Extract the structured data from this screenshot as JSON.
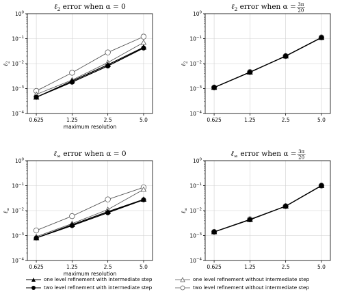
{
  "chart_data": [
    {
      "type": "line",
      "title": "ℓ₂ error when α = 0",
      "title_parts": {
        "main": "ℓ",
        "sub": "2",
        "rest": " error when α = 0"
      },
      "xlabel": "maximum resolution",
      "ylabel": "ℓ₂",
      "ylabel_parts": {
        "main": "ℓ",
        "sub": "2"
      },
      "x": [
        0.625,
        1.25,
        2.5,
        5.0
      ],
      "x_tick_labels": [
        "0.625",
        "1.25",
        "2.5",
        "5.0"
      ],
      "y_scale": "log",
      "ylim": [
        0.0001,
        1
      ],
      "y_tick_labels": [
        {
          "b": "10",
          "e": "−4"
        },
        {
          "b": "10",
          "e": "−3"
        },
        {
          "b": "10",
          "e": "−2"
        },
        {
          "b": "10",
          "e": "−1"
        },
        {
          "b": "10",
          "e": "0"
        }
      ],
      "series": [
        {
          "name": "one level refinement with intermediate step",
          "marker": "triangle-filled",
          "values": [
            0.00045,
            0.002,
            0.009,
            0.045
          ]
        },
        {
          "name": "two level refinement with intermediate step",
          "marker": "circle-filled",
          "values": [
            0.00045,
            0.0018,
            0.008,
            0.042
          ]
        },
        {
          "name": "one level refinement without intermediate step",
          "marker": "triangle-open",
          "values": [
            0.00058,
            0.0022,
            0.011,
            0.07
          ]
        },
        {
          "name": "two level refinement without intermediate step",
          "marker": "circle-open",
          "values": [
            0.0008,
            0.0043,
            0.028,
            0.12
          ]
        }
      ]
    },
    {
      "type": "line",
      "title": "ℓ₂ error when α = 3π/20",
      "title_parts": {
        "main": "ℓ",
        "sub": "2",
        "rest": " error when α = ",
        "frac_num": "3π",
        "frac_den": "20"
      },
      "xlabel": "",
      "ylabel": "ℓ₂",
      "ylabel_parts": {
        "main": "ℓ",
        "sub": "2"
      },
      "x": [
        0.625,
        1.25,
        2.5,
        5.0
      ],
      "x_tick_labels": [
        "0.625",
        "1.25",
        "2.5",
        "5.0"
      ],
      "y_scale": "log",
      "ylim": [
        0.0001,
        1
      ],
      "y_tick_labels": [
        {
          "b": "10",
          "e": "−4"
        },
        {
          "b": "10",
          "e": "−3"
        },
        {
          "b": "10",
          "e": "−2"
        },
        {
          "b": "10",
          "e": "−1"
        },
        {
          "b": "10",
          "e": "0"
        }
      ],
      "series": [
        {
          "name": "one level refinement with intermediate step",
          "marker": "triangle-filled",
          "values": [
            0.0011,
            0.0045,
            0.02,
            0.11
          ]
        },
        {
          "name": "two level refinement with intermediate step",
          "marker": "circle-filled",
          "values": [
            0.0011,
            0.0045,
            0.02,
            0.11
          ]
        },
        {
          "name": "one level refinement without intermediate step",
          "marker": "triangle-open",
          "values": [
            0.0011,
            0.0046,
            0.02,
            0.112
          ]
        },
        {
          "name": "two level refinement without intermediate step",
          "marker": "circle-open",
          "values": [
            0.0011,
            0.0046,
            0.02,
            0.112
          ]
        }
      ]
    },
    {
      "type": "line",
      "title": "ℓ∞ error when α = 0",
      "title_parts": {
        "main": "ℓ",
        "sub": "∞",
        "rest": " error when α = 0"
      },
      "xlabel": "maximum resolution",
      "ylabel": "ℓ∞",
      "ylabel_parts": {
        "main": "ℓ",
        "sub": "∞"
      },
      "x": [
        0.625,
        1.25,
        2.5,
        5.0
      ],
      "x_tick_labels": [
        "0.625",
        "1.25",
        "2.5",
        "5.0"
      ],
      "y_scale": "log",
      "ylim": [
        0.0001,
        1
      ],
      "y_tick_labels": [
        {
          "b": "10",
          "e": "−4"
        },
        {
          "b": "10",
          "e": "−3"
        },
        {
          "b": "10",
          "e": "−2"
        },
        {
          "b": "10",
          "e": "−1"
        },
        {
          "b": "10",
          "e": "0"
        }
      ],
      "series": [
        {
          "name": "one level refinement with intermediate step",
          "marker": "triangle-filled",
          "values": [
            0.0008,
            0.0027,
            0.009,
            0.028
          ]
        },
        {
          "name": "two level refinement with intermediate step",
          "marker": "circle-filled",
          "values": [
            0.0008,
            0.0025,
            0.0082,
            0.027
          ]
        },
        {
          "name": "one level refinement without intermediate step",
          "marker": "triangle-open",
          "values": [
            0.0009,
            0.003,
            0.011,
            0.07
          ]
        },
        {
          "name": "two level refinement without intermediate step",
          "marker": "circle-open",
          "values": [
            0.0016,
            0.006,
            0.028,
            0.085
          ]
        }
      ]
    },
    {
      "type": "line",
      "title": "ℓ∞ error when α = 3π/20",
      "title_parts": {
        "main": "ℓ",
        "sub": "∞",
        "rest": " error when α = ",
        "frac_num": "3π",
        "frac_den": "20"
      },
      "xlabel": "",
      "ylabel": "ℓ∞",
      "ylabel_parts": {
        "main": "ℓ",
        "sub": "∞"
      },
      "x": [
        0.625,
        1.25,
        2.5,
        5.0
      ],
      "x_tick_labels": [
        "0.625",
        "1.25",
        "2.5",
        "5.0"
      ],
      "y_scale": "log",
      "ylim": [
        0.0001,
        1
      ],
      "y_tick_labels": [
        {
          "b": "10",
          "e": "−4"
        },
        {
          "b": "10",
          "e": "−3"
        },
        {
          "b": "10",
          "e": "−2"
        },
        {
          "b": "10",
          "e": "−1"
        },
        {
          "b": "10",
          "e": "0"
        }
      ],
      "series": [
        {
          "name": "one level refinement with intermediate step",
          "marker": "triangle-filled",
          "values": [
            0.0014,
            0.0043,
            0.015,
            0.1
          ]
        },
        {
          "name": "two level refinement with intermediate step",
          "marker": "circle-filled",
          "values": [
            0.0014,
            0.0043,
            0.015,
            0.1
          ]
        },
        {
          "name": "one level refinement without intermediate step",
          "marker": "triangle-open",
          "values": [
            0.0014,
            0.0045,
            0.015,
            0.1
          ]
        },
        {
          "name": "two level refinement without intermediate step",
          "marker": "circle-open",
          "values": [
            0.0014,
            0.0045,
            0.015,
            0.1
          ]
        }
      ]
    }
  ],
  "legend": {
    "placement": "bottom",
    "items": [
      {
        "label": "one level refinement with intermediate step",
        "marker": "triangle-filled"
      },
      {
        "label": "two level refinement with intermediate step",
        "marker": "circle-filled"
      },
      {
        "label": "one level refinement without intermediate step",
        "marker": "triangle-open"
      },
      {
        "label": "two level refinement without intermediate step",
        "marker": "circle-open"
      }
    ]
  },
  "colors": {
    "line_filled": "#000000",
    "line_open": "#555555",
    "axes": "#000000",
    "background": "#ffffff"
  }
}
